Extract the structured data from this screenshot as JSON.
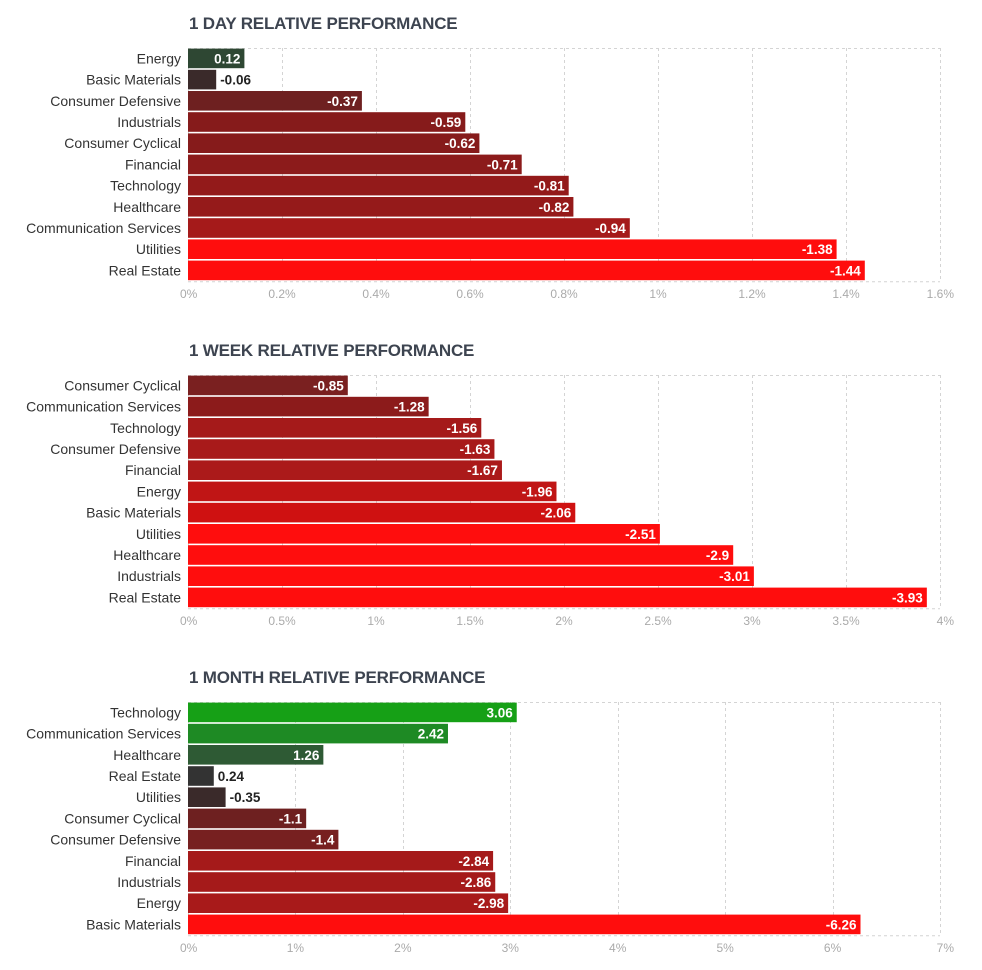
{
  "chart_data": [
    {
      "type": "bar",
      "orientation": "horizontal",
      "title": "1 DAY RELATIVE PERFORMANCE",
      "categories": [
        "Energy",
        "Basic Materials",
        "Consumer Defensive",
        "Industrials",
        "Consumer Cyclical",
        "Financial",
        "Technology",
        "Healthcare",
        "Communication Services",
        "Utilities",
        "Real Estate"
      ],
      "values": [
        0.12,
        -0.06,
        -0.37,
        -0.59,
        -0.62,
        -0.71,
        -0.81,
        -0.82,
        -0.94,
        -1.38,
        -1.44
      ],
      "value_labels": [
        "0.12",
        "-0.06",
        "-0.37",
        "-0.59",
        "-0.62",
        "-0.71",
        "-0.81",
        "-0.82",
        "-0.94",
        "-1.38",
        "-1.44"
      ],
      "xlim": [
        0,
        1.6
      ],
      "xticks": [
        "0%",
        "0.2%",
        "0.4%",
        "0.6%",
        "0.8%",
        "1%",
        "1.2%",
        "1.4%",
        "1.6%"
      ],
      "grid": true,
      "colors": [
        "#2e4733",
        "#3a2a2a",
        "#6e2020",
        "#861b1b",
        "#861b1b",
        "#8c1b1b",
        "#931a1a",
        "#951a1a",
        "#a51a1a",
        "#ff0d0d",
        "#ff0d0d"
      ]
    },
    {
      "type": "bar",
      "orientation": "horizontal",
      "title": "1 WEEK RELATIVE PERFORMANCE",
      "categories": [
        "Consumer Cyclical",
        "Communication Services",
        "Technology",
        "Consumer Defensive",
        "Financial",
        "Energy",
        "Basic Materials",
        "Utilities",
        "Healthcare",
        "Industrials",
        "Real Estate"
      ],
      "values": [
        -0.85,
        -1.28,
        -1.56,
        -1.63,
        -1.67,
        -1.96,
        -2.06,
        -2.51,
        -2.9,
        -3.01,
        -3.93
      ],
      "value_labels": [
        "-0.85",
        "-1.28",
        "-1.56",
        "-1.63",
        "-1.67",
        "-1.96",
        "-2.06",
        "-2.51",
        "-2.9",
        "-3.01",
        "-3.93"
      ],
      "xlim": [
        0,
        4
      ],
      "xticks": [
        "0%",
        "0.5%",
        "1%",
        "1.5%",
        "2%",
        "2.5%",
        "3%",
        "3.5%",
        "4%"
      ],
      "grid": true,
      "colors": [
        "#7a2020",
        "#8c1b1b",
        "#a51a1a",
        "#a81a1a",
        "#ab1a1a",
        "#c01515",
        "#cf1111",
        "#ff0d0d",
        "#ff0d0d",
        "#ff0d0d",
        "#ff0d0d"
      ]
    },
    {
      "type": "bar",
      "orientation": "horizontal",
      "title": "1 MONTH RELATIVE PERFORMANCE",
      "categories": [
        "Technology",
        "Communication Services",
        "Healthcare",
        "Real Estate",
        "Utilities",
        "Consumer Cyclical",
        "Consumer Defensive",
        "Financial",
        "Industrials",
        "Energy",
        "Basic Materials"
      ],
      "values": [
        3.06,
        2.42,
        1.26,
        0.24,
        -0.35,
        -1.1,
        -1.4,
        -2.84,
        -2.86,
        -2.98,
        -6.26
      ],
      "value_labels": [
        "3.06",
        "2.42",
        "1.26",
        "0.24",
        "-0.35",
        "-1.1",
        "-1.4",
        "-2.84",
        "-2.86",
        "-2.98",
        "-6.26"
      ],
      "xlim": [
        0,
        7
      ],
      "xticks": [
        "0%",
        "1%",
        "2%",
        "3%",
        "4%",
        "5%",
        "6%",
        "7%"
      ],
      "grid": true,
      "colors": [
        "#16a016",
        "#1e8a24",
        "#2e5a34",
        "#333333",
        "#3a2a2a",
        "#6e2020",
        "#772020",
        "#a51a1a",
        "#a51a1a",
        "#a81a1a",
        "#ff0d0d"
      ]
    }
  ]
}
